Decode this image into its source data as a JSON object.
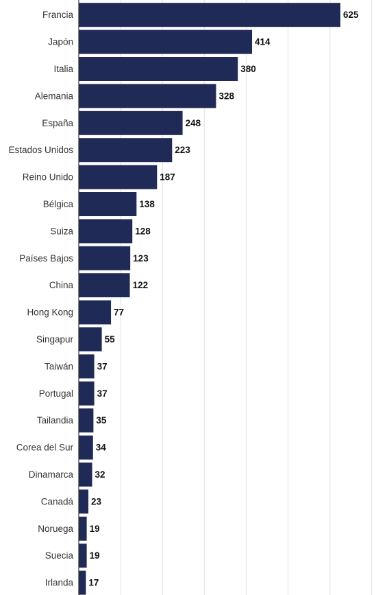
{
  "chart_data": {
    "type": "bar",
    "orientation": "horizontal",
    "bar_color": "#1f2a56",
    "categories": [
      "Francia",
      "Japón",
      "Italia",
      "Alemania",
      "España",
      "Estados Unidos",
      "Reino Unido",
      "Bélgica",
      "Suiza",
      "Países Bajos",
      "China",
      "Hong Kong",
      "Singapur",
      "Taiwán",
      "Portugal",
      "Tailandia",
      "Corea del Sur",
      "Dinamarca",
      "Canadá",
      "Noruega",
      "Suecia",
      "Irlanda"
    ],
    "values": [
      625,
      414,
      380,
      328,
      248,
      223,
      187,
      138,
      128,
      123,
      122,
      77,
      55,
      37,
      37,
      35,
      34,
      32,
      23,
      19,
      19,
      17
    ],
    "xlim": [
      0,
      700
    ],
    "grid": true
  }
}
